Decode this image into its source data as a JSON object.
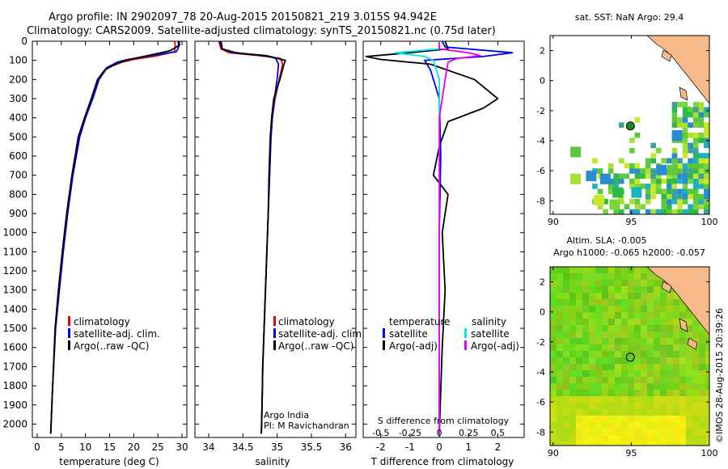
{
  "figure": {
    "title_line1": "Argo profile: IN 2902097_78 20-Aug-2015 20150821_219 3.015S 94.942E",
    "title_line2": "Climatology: CARS2009. Satellite-adjusted climatology: synTS_20150821.nc (0.75d later)",
    "watermark": "©IMOS 28-Aug-2015 20:39:26",
    "colors": {
      "climatology": "#e00000",
      "satellite": "#0000ee",
      "argo": "#000000",
      "salinity_sat": "#00e5ee",
      "salinity_argo": "#ee00ee",
      "land": "#f5b98a"
    }
  },
  "chart_data": [
    {
      "id": "temperature",
      "type": "line",
      "xlabel": "temperature (deg C)",
      "xlim": [
        -1,
        31
      ],
      "xticks": [
        "0",
        "5",
        "10",
        "15",
        "20",
        "25",
        "30"
      ],
      "xtick_values": [
        0,
        5,
        10,
        15,
        20,
        25,
        30
      ],
      "ylim": [
        0,
        2070
      ],
      "yticks": [
        "0",
        "100",
        "200",
        "300",
        "400",
        "500",
        "600",
        "700",
        "800",
        "900",
        "1000",
        "1100",
        "1200",
        "1300",
        "1400",
        "1500",
        "1600",
        "1700",
        "1800",
        "1900",
        "2000"
      ],
      "ytick_values": [
        0,
        100,
        200,
        300,
        400,
        500,
        600,
        700,
        800,
        900,
        1000,
        1100,
        1200,
        1300,
        1400,
        1500,
        1600,
        1700,
        1800,
        1900,
        2000
      ],
      "legend": [
        "climatology",
        "satellite-adj. clim.",
        "Argo(..raw -QC)"
      ],
      "series": [
        {
          "name": "climatology",
          "color": "#e00000",
          "x": [
            28.5,
            28.6,
            28.4,
            25.0,
            20.0,
            17.5,
            14.5,
            12.8,
            11.5,
            10.0,
            8.8,
            7.4,
            6.3,
            5.4,
            4.6,
            3.8,
            3.2,
            2.8
          ],
          "y": [
            0,
            30,
            55,
            75,
            95,
            110,
            140,
            200,
            300,
            400,
            500,
            700,
            900,
            1100,
            1300,
            1500,
            1800,
            2050
          ]
        },
        {
          "name": "satellite-adj. clim.",
          "color": "#0000ee",
          "x": [
            29.2,
            29.3,
            28.8,
            23.5,
            18.8,
            16.5,
            14.3,
            12.8,
            11.5,
            10.0,
            8.8,
            7.4,
            6.3,
            5.4,
            4.6,
            3.8,
            3.2,
            2.8
          ],
          "y": [
            0,
            30,
            55,
            75,
            95,
            110,
            140,
            200,
            300,
            400,
            500,
            700,
            900,
            1100,
            1300,
            1500,
            1800,
            2050
          ]
        },
        {
          "name": "Argo(..raw -QC)",
          "color": "#000000",
          "x": [
            29.4,
            29.5,
            27.5,
            22.0,
            18.2,
            16.2,
            14.0,
            12.5,
            11.2,
            9.8,
            8.5,
            7.2,
            6.1,
            5.2,
            4.4,
            3.7,
            3.2,
            2.8
          ],
          "y": [
            0,
            20,
            50,
            80,
            100,
            120,
            150,
            200,
            300,
            400,
            500,
            700,
            900,
            1100,
            1300,
            1500,
            1800,
            2050
          ]
        }
      ]
    },
    {
      "id": "salinity",
      "type": "line",
      "xlabel": "salinity",
      "xlim": [
        33.8,
        36.15
      ],
      "xticks": [
        "34",
        "34.5",
        "35",
        "35.5",
        "36"
      ],
      "xtick_values": [
        34,
        34.5,
        35,
        35.5,
        36
      ],
      "ylim": [
        0,
        2070
      ],
      "legend": [
        "climatology",
        "satellite-adj. clim.",
        "Argo(..raw -QC)"
      ],
      "annotation": [
        "Argo India",
        "PI: M Ravichandran"
      ],
      "series": [
        {
          "name": "climatology",
          "color": "#e00000",
          "x": [
            34.15,
            34.18,
            34.3,
            34.75,
            35.05,
            35.08,
            35.03,
            34.97,
            34.93,
            34.91,
            34.89,
            34.87,
            34.85,
            34.83,
            34.81,
            34.79,
            34.78,
            34.77
          ],
          "y": [
            0,
            40,
            60,
            75,
            90,
            120,
            200,
            300,
            400,
            500,
            700,
            900,
            1100,
            1300,
            1500,
            1700,
            1900,
            2050
          ]
        },
        {
          "name": "satellite-adj. clim.",
          "color": "#0000ee",
          "x": [
            34.16,
            34.2,
            34.35,
            34.85,
            34.98,
            35.02,
            35.0,
            34.96,
            34.93,
            34.91,
            34.89,
            34.87,
            34.85,
            34.83,
            34.81,
            34.79,
            34.78,
            34.77
          ],
          "y": [
            0,
            40,
            60,
            75,
            90,
            120,
            200,
            300,
            400,
            500,
            700,
            900,
            1100,
            1300,
            1500,
            1700,
            1900,
            2050
          ]
        },
        {
          "name": "Argo(..raw -QC)",
          "color": "#000000",
          "x": [
            34.18,
            34.2,
            34.4,
            34.9,
            35.12,
            35.1,
            35.04,
            34.95,
            34.92,
            34.9,
            34.88,
            34.87,
            34.85,
            34.83,
            34.81,
            34.79,
            34.78,
            34.77
          ],
          "y": [
            0,
            40,
            60,
            80,
            100,
            120,
            200,
            300,
            400,
            500,
            700,
            900,
            1100,
            1300,
            1500,
            1700,
            1900,
            2050
          ]
        }
      ]
    },
    {
      "id": "difference",
      "type": "line",
      "xlabel": "T difference from climatology",
      "top_label": "S difference from climatology",
      "xlim": [
        -2.6,
        2.9
      ],
      "xticks": [
        "-2",
        "-1",
        "0",
        "1",
        "2"
      ],
      "xtick_values": [
        -2,
        -1,
        0,
        1,
        2
      ],
      "top_xticks": [
        "-0.5",
        "-0.25",
        "0",
        "0.25",
        "0.5"
      ],
      "top_xtick_values": [
        -2,
        -1,
        0,
        1,
        2
      ],
      "ylim": [
        0,
        2070
      ],
      "legend": [
        {
          "group": "temperature",
          "items": [
            "satellite",
            "Argo(-adj)"
          ]
        },
        {
          "group": "salinity",
          "items": [
            "satellite",
            "Argo(-adj)"
          ]
        }
      ],
      "series": [
        {
          "name": "temperature satellite",
          "color": "#0000ee",
          "x": [
            0.1,
            0.2,
            2.5,
            1.5,
            -0.5,
            -0.3,
            0.0,
            0.05,
            0.0,
            0.0,
            0.0
          ],
          "y": [
            0,
            30,
            60,
            80,
            100,
            150,
            300,
            600,
            1000,
            1500,
            2050
          ]
        },
        {
          "name": "temperature Argo(-adj)",
          "color": "#000000",
          "x": [
            0.2,
            0.3,
            -1.0,
            -2.5,
            -2.0,
            -0.3,
            1.2,
            2.0,
            1.5,
            0.3,
            0.0,
            -0.2,
            0.3,
            0.1,
            0.2,
            0.1,
            0.0
          ],
          "y": [
            0,
            40,
            60,
            80,
            95,
            120,
            200,
            300,
            350,
            420,
            550,
            700,
            800,
            1000,
            1300,
            1600,
            2050
          ]
        },
        {
          "name": "salinity satellite",
          "color": "#00e5ee",
          "x": [
            0.0,
            0.0,
            -1.5,
            -0.5,
            -0.2,
            0.0,
            0.0,
            0.0,
            0.0,
            0.0
          ],
          "y": [
            0,
            40,
            60,
            80,
            100,
            200,
            400,
            800,
            1500,
            2050
          ]
        },
        {
          "name": "salinity Argo(-adj)",
          "color": "#ee00ee",
          "x": [
            0.0,
            0.0,
            1.0,
            1.4,
            0.6,
            0.3,
            0.2,
            0.0,
            0.0,
            0.0
          ],
          "y": [
            0,
            40,
            60,
            75,
            90,
            110,
            200,
            400,
            1000,
            2050
          ]
        }
      ]
    },
    {
      "id": "map_sst",
      "type": "heatmap",
      "title": "sat. SST: NaN Argo: 29.4",
      "xlim": [
        89.8,
        100
      ],
      "ylim": [
        -8.9,
        3
      ],
      "xticks": [
        "90",
        "95",
        "100"
      ],
      "xtick_values": [
        90,
        95,
        100
      ],
      "yticks": [
        "2",
        "0",
        "-2",
        "-4",
        "-6",
        "-8"
      ],
      "ytick_values": [
        2,
        0,
        -2,
        -4,
        -6,
        -8
      ],
      "argo_position": {
        "lon": 94.942,
        "lat": -3.015
      }
    },
    {
      "id": "map_sla",
      "type": "heatmap",
      "title_line1": "Altim. SLA: -0.005",
      "title_line2": "Argo h1000: -0.065 h2000: -0.057",
      "xlim": [
        89.8,
        100
      ],
      "ylim": [
        -8.9,
        3
      ],
      "xticks": [
        "90",
        "95",
        "100"
      ],
      "xtick_values": [
        90,
        95,
        100
      ],
      "yticks": [
        "2",
        "0",
        "-2",
        "-4",
        "-6",
        "-8"
      ],
      "ytick_values": [
        2,
        0,
        -2,
        -4,
        -6,
        -8
      ],
      "argo_position": {
        "lon": 94.942,
        "lat": -3.015
      }
    }
  ]
}
